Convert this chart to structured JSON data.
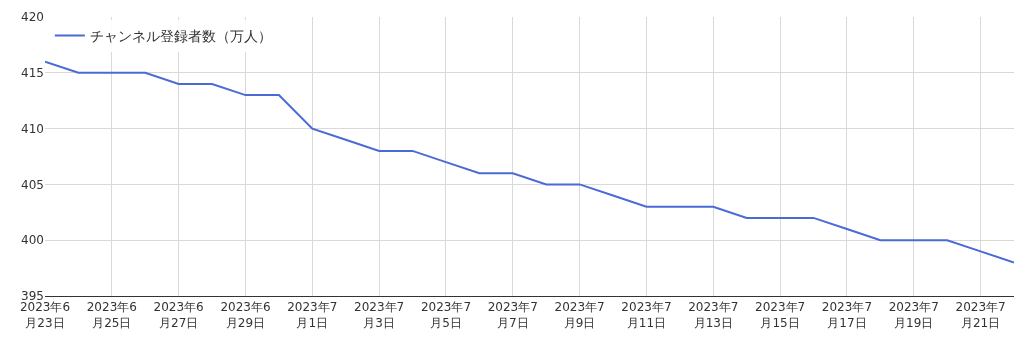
{
  "chart_data": {
    "type": "line",
    "x": [
      "2023-06-23",
      "2023-06-24",
      "2023-06-25",
      "2023-06-26",
      "2023-06-27",
      "2023-06-28",
      "2023-06-29",
      "2023-06-30",
      "2023-07-01",
      "2023-07-02",
      "2023-07-03",
      "2023-07-04",
      "2023-07-05",
      "2023-07-06",
      "2023-07-07",
      "2023-07-08",
      "2023-07-09",
      "2023-07-10",
      "2023-07-11",
      "2023-07-12",
      "2023-07-13",
      "2023-07-14",
      "2023-07-15",
      "2023-07-16",
      "2023-07-17",
      "2023-07-18",
      "2023-07-19",
      "2023-07-20",
      "2023-07-21",
      "2023-07-22"
    ],
    "series": [
      {
        "name": "チャンネル登録者数（万人）",
        "color": "#4a6bd6",
        "values": [
          416,
          415,
          415,
          415,
          414,
          414,
          413,
          413,
          410,
          409,
          408,
          408,
          407,
          406,
          406,
          405,
          405,
          404,
          403,
          403,
          403,
          402,
          402,
          402,
          401,
          400,
          400,
          400,
          399,
          398
        ]
      }
    ],
    "xlim": [
      "2023-06-23",
      "2023-07-22"
    ],
    "xticks": [
      {
        "value": "2023-06-23",
        "label": "2023年6\n月23日"
      },
      {
        "value": "2023-06-25",
        "label": "2023年6\n月25日"
      },
      {
        "value": "2023-06-27",
        "label": "2023年6\n月27日"
      },
      {
        "value": "2023-06-29",
        "label": "2023年6\n月29日"
      },
      {
        "value": "2023-07-01",
        "label": "2023年7\n月1日"
      },
      {
        "value": "2023-07-03",
        "label": "2023年7\n月3日"
      },
      {
        "value": "2023-07-05",
        "label": "2023年7\n月5日"
      },
      {
        "value": "2023-07-07",
        "label": "2023年7\n月7日"
      },
      {
        "value": "2023-07-09",
        "label": "2023年7\n月9日"
      },
      {
        "value": "2023-07-11",
        "label": "2023年7\n月11日"
      },
      {
        "value": "2023-07-13",
        "label": "2023年7\n月13日"
      },
      {
        "value": "2023-07-15",
        "label": "2023年7\n月15日"
      },
      {
        "value": "2023-07-17",
        "label": "2023年7\n月17日"
      },
      {
        "value": "2023-07-19",
        "label": "2023年7\n月19日"
      },
      {
        "value": "2023-07-21",
        "label": "2023年7\n月21日"
      }
    ],
    "ylim": [
      395,
      420
    ],
    "yticks": [
      395,
      400,
      405,
      410,
      415,
      420
    ],
    "grid": true,
    "legend": "top left",
    "marker": "none",
    "line_style": "solid"
  }
}
